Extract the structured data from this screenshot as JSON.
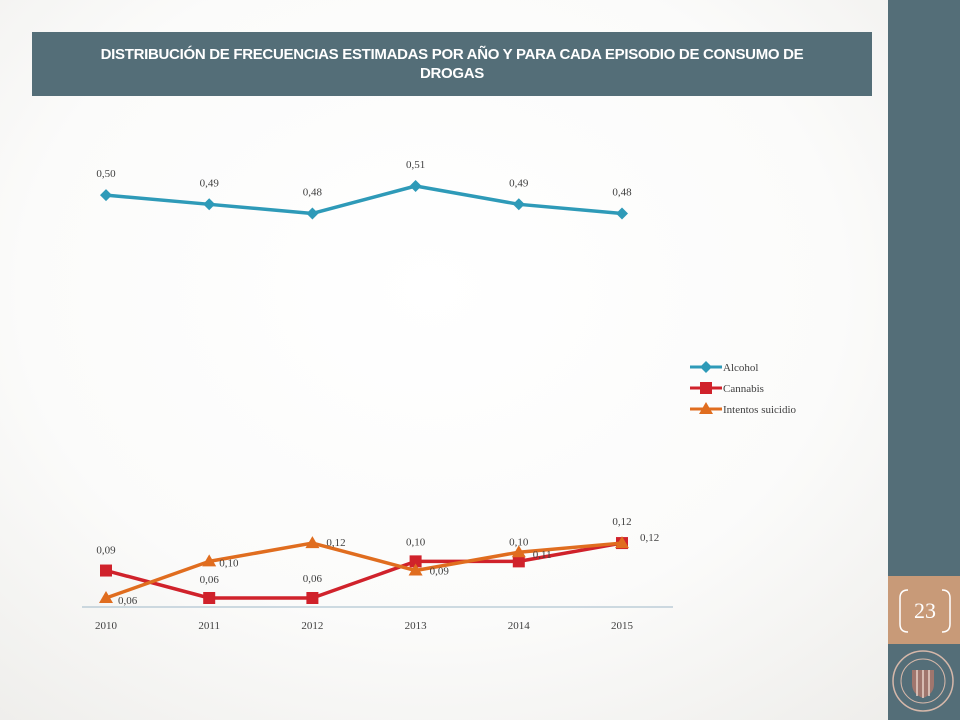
{
  "slide": {
    "title": "DISTRIBUCIÓN DE FRECUENCIAS ESTIMADAS POR AÑO Y PARA CADA EPISODIO DE CONSUMO DE DROGAS",
    "page_number": "23",
    "colors": {
      "header": "#546e78",
      "accent_band": "#c89a78"
    }
  },
  "chart_data": {
    "type": "line",
    "title": "",
    "xlabel": "",
    "ylabel": "",
    "categories": [
      "2010",
      "2011",
      "2012",
      "2013",
      "2014",
      "2015"
    ],
    "ylim": [
      0.06,
      0.51
    ],
    "grid": false,
    "legend_position": "right",
    "series": [
      {
        "name": "Alcohol",
        "color": "#2e9ab8",
        "marker": "diamond",
        "values": [
          0.5,
          0.49,
          0.48,
          0.51,
          0.49,
          0.48
        ],
        "labels": [
          "0,50",
          "0,49",
          "0,48",
          "0,51",
          "0,49",
          "0,48"
        ]
      },
      {
        "name": "Cannabis",
        "color": "#d0222b",
        "marker": "square",
        "values": [
          0.09,
          0.06,
          0.06,
          0.1,
          0.1,
          0.12
        ],
        "labels": [
          "0,09",
          "0,06",
          "0,06",
          "0,10",
          "0,10",
          "0,12"
        ]
      },
      {
        "name": "Intentos suicidio",
        "color": "#e06d1f",
        "marker": "triangle",
        "values": [
          0.06,
          0.1,
          0.12,
          0.09,
          0.11,
          0.12
        ],
        "labels": [
          "0,06",
          "0,10",
          "0,12",
          "0,09",
          "0,11",
          "0,12"
        ]
      }
    ]
  }
}
